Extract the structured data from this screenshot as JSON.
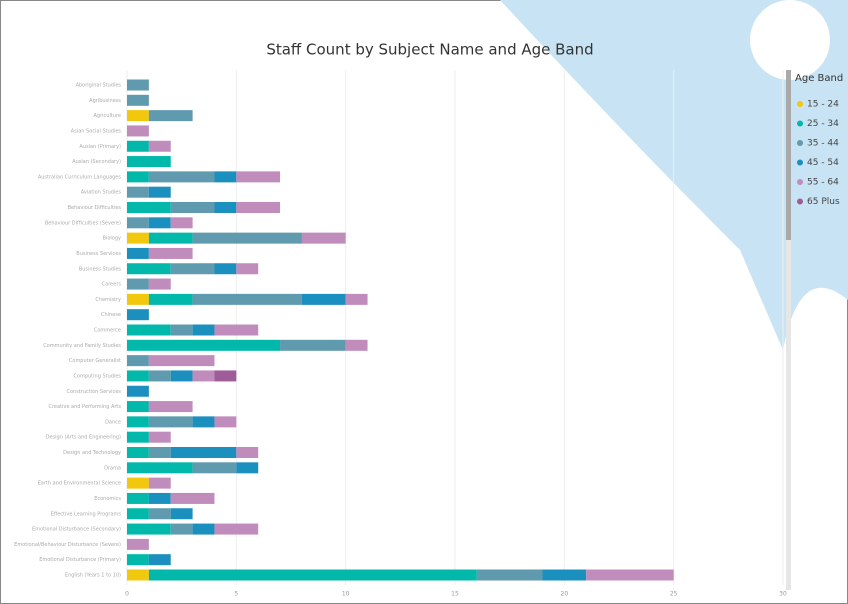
{
  "chart_data": {
    "type": "stacked-bar-horizontal",
    "title": "Staff Count by Subject Name and Age Band",
    "legend_title": "Age Band",
    "categories": [
      "Aboriginal Studies",
      "Agribusiness",
      "Agriculture",
      "Asian Social Studies",
      "Auslan (Primary)",
      "Auslan (Secondary)",
      "Australian Curriculum Languages",
      "Aviation Studies",
      "Behaviour Difficulties",
      "Behaviour Difficulties (Severe)",
      "Biology",
      "Business Services",
      "Business Studies",
      "Careers",
      "Chemistry",
      "Chinese",
      "Commerce",
      "Community and Family Studies",
      "Computer Generalist",
      "Computing Studies",
      "Construction Services",
      "Creative and Performing Arts",
      "Dance",
      "Design (Arts and Engineering)",
      "Design and Technology",
      "Drama",
      "Earth and Environmental Science",
      "Economics",
      "Effective Learning Programs",
      "Emotional Disturbance (Secondary)",
      "Emotional/Behaviour Disturbance (Severe)",
      "Emotional Disturbance (Primary)",
      "English (Years 1 to 10)"
    ],
    "series": [
      {
        "name": "15 - 24",
        "color": "#f2c80f",
        "values": [
          null,
          null,
          1,
          null,
          null,
          null,
          null,
          null,
          null,
          null,
          1,
          null,
          null,
          null,
          1,
          null,
          null,
          null,
          null,
          null,
          null,
          null,
          null,
          null,
          null,
          null,
          1,
          null,
          null,
          null,
          null,
          null,
          1
        ]
      },
      {
        "name": "25 - 34",
        "color": "#01b8aa",
        "values": [
          null,
          null,
          null,
          null,
          1,
          2,
          1,
          null,
          2,
          null,
          2,
          null,
          2,
          null,
          2,
          null,
          2,
          7,
          null,
          1,
          null,
          1,
          1,
          1,
          1,
          3,
          null,
          1,
          1,
          2,
          null,
          1,
          15
        ]
      },
      {
        "name": "35 - 44",
        "color": "#5f9aae",
        "values": [
          1,
          1,
          2,
          null,
          null,
          null,
          3,
          1,
          2,
          1,
          5,
          null,
          2,
          1,
          5,
          null,
          1,
          3,
          1,
          1,
          null,
          null,
          2,
          null,
          1,
          2,
          null,
          null,
          1,
          1,
          null,
          null,
          3
        ]
      },
      {
        "name": "45 - 54",
        "color": "#1b8fbd",
        "values": [
          null,
          null,
          null,
          null,
          null,
          null,
          1,
          1,
          1,
          1,
          null,
          1,
          1,
          null,
          2,
          1,
          1,
          null,
          null,
          1,
          1,
          null,
          1,
          null,
          3,
          1,
          null,
          1,
          1,
          1,
          null,
          1,
          2
        ]
      },
      {
        "name": "55 - 64",
        "color": "#c08cbc",
        "values": [
          null,
          null,
          null,
          1,
          1,
          null,
          2,
          null,
          2,
          1,
          2,
          2,
          1,
          1,
          1,
          null,
          2,
          1,
          3,
          1,
          null,
          2,
          1,
          1,
          1,
          null,
          1,
          2,
          null,
          2,
          1,
          null,
          4
        ]
      },
      {
        "name": "65 Plus",
        "color": "#9e5c98",
        "values": [
          null,
          null,
          null,
          null,
          null,
          null,
          null,
          null,
          null,
          null,
          null,
          null,
          null,
          null,
          null,
          null,
          null,
          null,
          null,
          1,
          null,
          null,
          null,
          null,
          null,
          null,
          null,
          null,
          null,
          null,
          null,
          null,
          null
        ]
      }
    ],
    "xlim": [
      0,
      30
    ],
    "xticks": [
      0,
      5,
      10,
      15,
      20,
      25,
      30
    ],
    "grid": true
  }
}
